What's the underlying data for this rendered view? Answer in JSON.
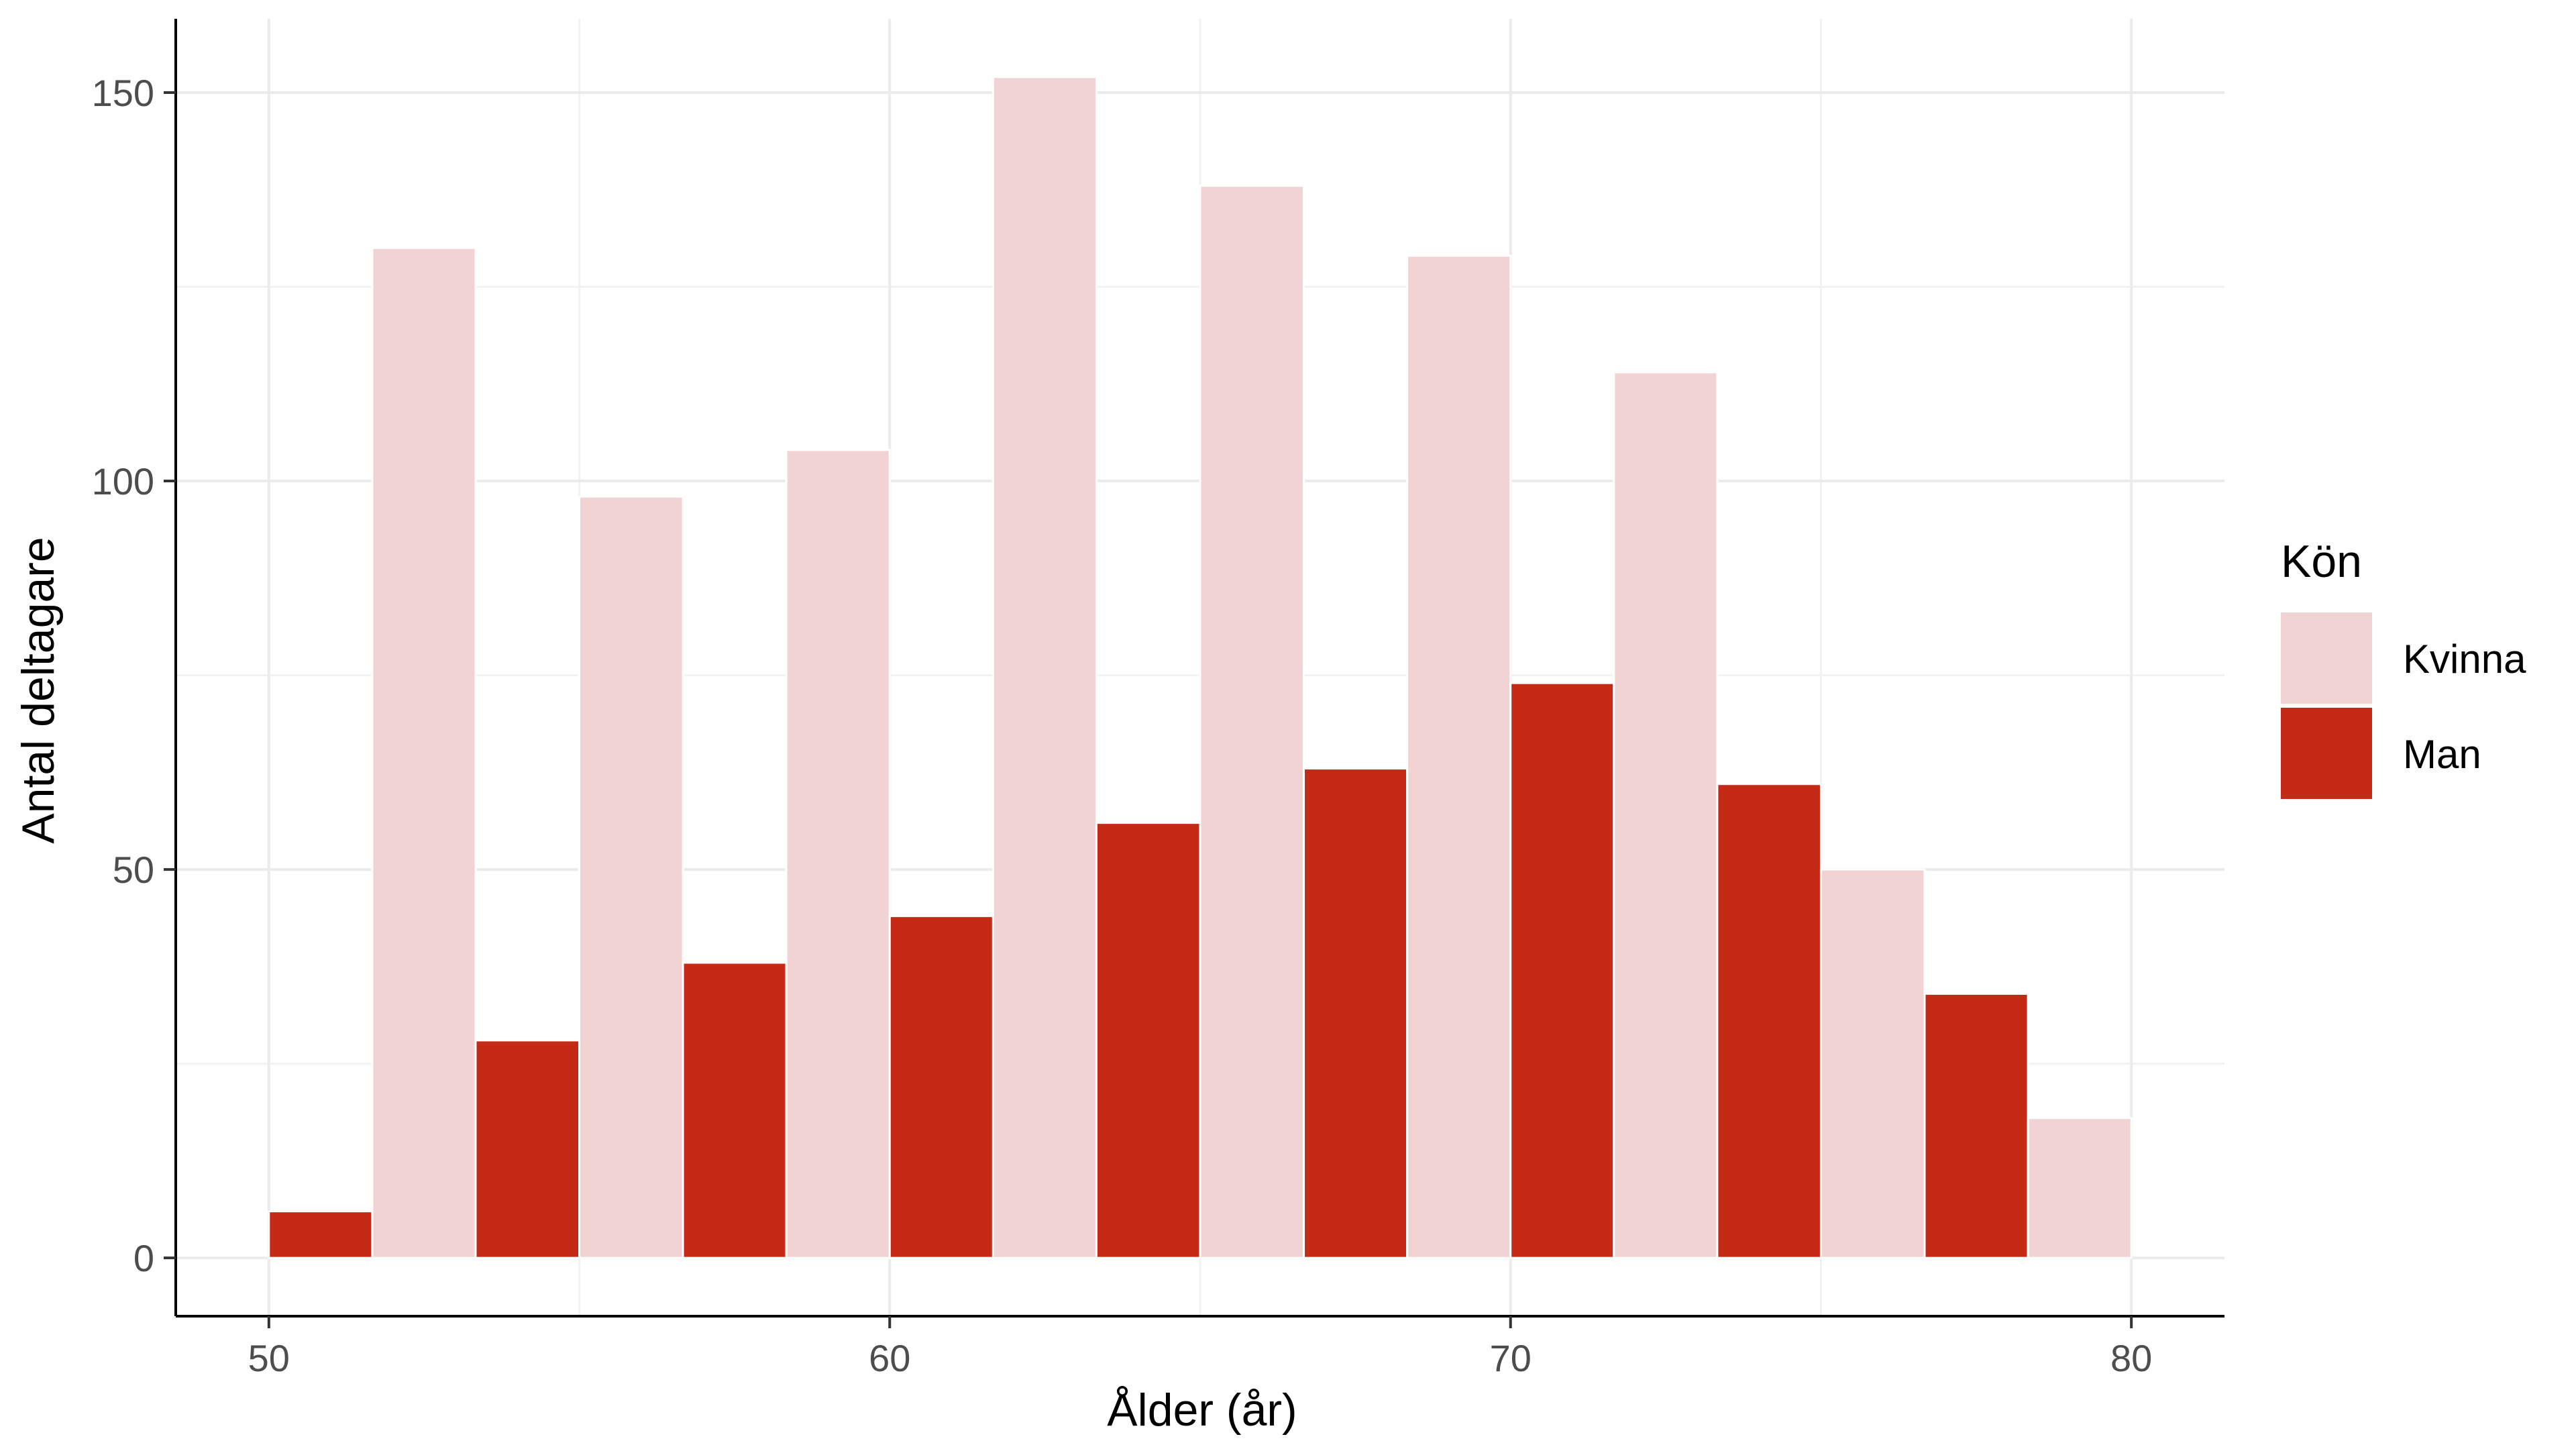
{
  "chart_data": {
    "type": "bar",
    "title": "",
    "xlabel": "Ålder (år)",
    "ylabel": "Antal deltagare",
    "xlim": [
      48.5,
      81.5
    ],
    "ylim": [
      -7.5,
      159.5
    ],
    "x_ticks": [
      50,
      60,
      70,
      80
    ],
    "x_tick_labels": [
      "50",
      "60",
      "70",
      "80"
    ],
    "y_ticks": [
      0,
      50,
      100,
      150
    ],
    "y_tick_labels": [
      "0",
      "50",
      "100",
      "150"
    ],
    "grid": true,
    "legend": {
      "title": "Kön",
      "position": "right"
    },
    "bin_edges": [
      50,
      53.33,
      56.67,
      60,
      63.33,
      66.67,
      70,
      73.33,
      76.67,
      80
    ],
    "series": [
      {
        "name": "Kvinna",
        "color": "#f2d3d3",
        "values": [
          130,
          98,
          104,
          152,
          138,
          129,
          114,
          50,
          18
        ]
      },
      {
        "name": "Man",
        "color": "#c42a16",
        "values": [
          6,
          28,
          38,
          44,
          56,
          63,
          74,
          61,
          34
        ]
      }
    ]
  }
}
